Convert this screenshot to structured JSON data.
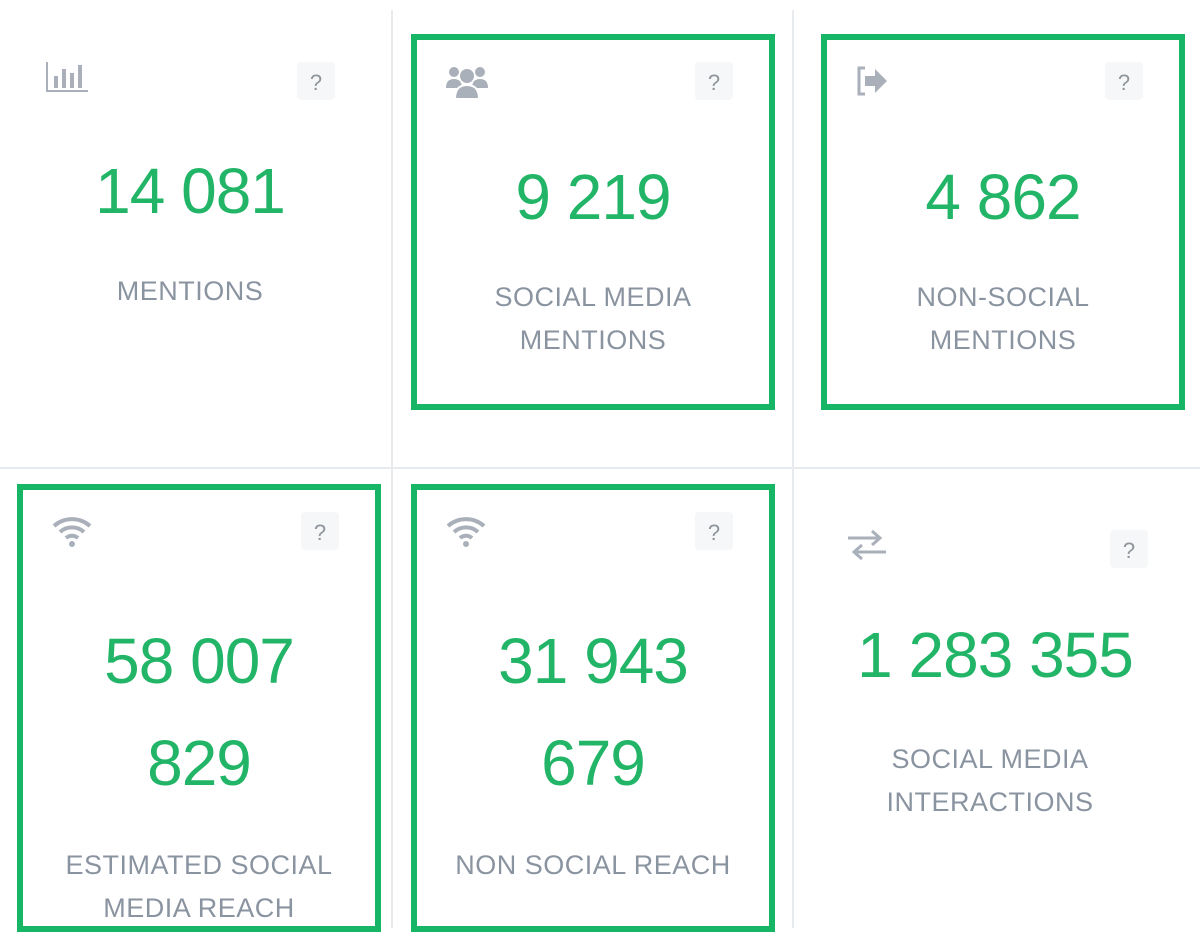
{
  "accent_color": "#17b566",
  "cards": [
    {
      "icon": "bar-chart-icon",
      "value": "14 081",
      "label": "MENTIONS",
      "highlighted": false,
      "help": "?"
    },
    {
      "icon": "users-icon",
      "value": "9 219",
      "label": "SOCIAL MEDIA MENTIONS",
      "highlighted": true,
      "help": "?"
    },
    {
      "icon": "sign-out-icon",
      "value": "4 862",
      "label": "NON-SOCIAL MENTIONS",
      "highlighted": true,
      "help": "?"
    },
    {
      "icon": "wifi-icon",
      "value": "58 007 829",
      "label": "ESTIMATED SOCIAL MEDIA REACH",
      "highlighted": true,
      "help": "?"
    },
    {
      "icon": "wifi-icon",
      "value": "31 943 679",
      "label": "NON SOCIAL REACH",
      "highlighted": true,
      "help": "?"
    },
    {
      "icon": "exchange-icon",
      "value": "1 283 355",
      "label": "SOCIAL MEDIA INTERACTIONS",
      "highlighted": false,
      "help": "?"
    }
  ]
}
